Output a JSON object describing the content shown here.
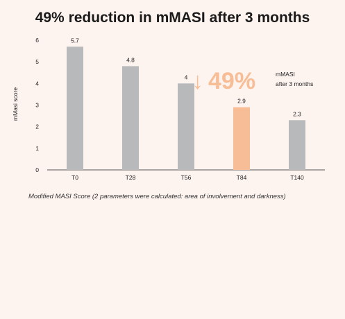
{
  "title": "49% reduction in mMASI after 3 months",
  "caption": "Modified MASI Score (2 parameters were calculated: area of involvement and darkness)",
  "chart_data": {
    "type": "bar",
    "title": "49% reduction in mMASI after 3 months",
    "ylabel": "mMasi score",
    "xlabel": "",
    "categories": [
      "T0",
      "T28",
      "T56",
      "T84",
      "T140"
    ],
    "values": [
      5.7,
      4.8,
      4,
      2.9,
      2.3
    ],
    "value_labels": [
      "5.7",
      "4.8",
      "4",
      "2.9",
      "2.3"
    ],
    "ylim": [
      0,
      6
    ],
    "yticks": [
      0,
      1,
      2,
      3,
      4,
      5,
      6
    ],
    "grid": false,
    "colors": {
      "default": "#b7b9bb",
      "highlight": "#f7bd97"
    },
    "highlight_index": 3,
    "annotation": {
      "arrow": "↓",
      "value": "49%",
      "line1": "mMASI",
      "line2": "after 3 months"
    }
  }
}
